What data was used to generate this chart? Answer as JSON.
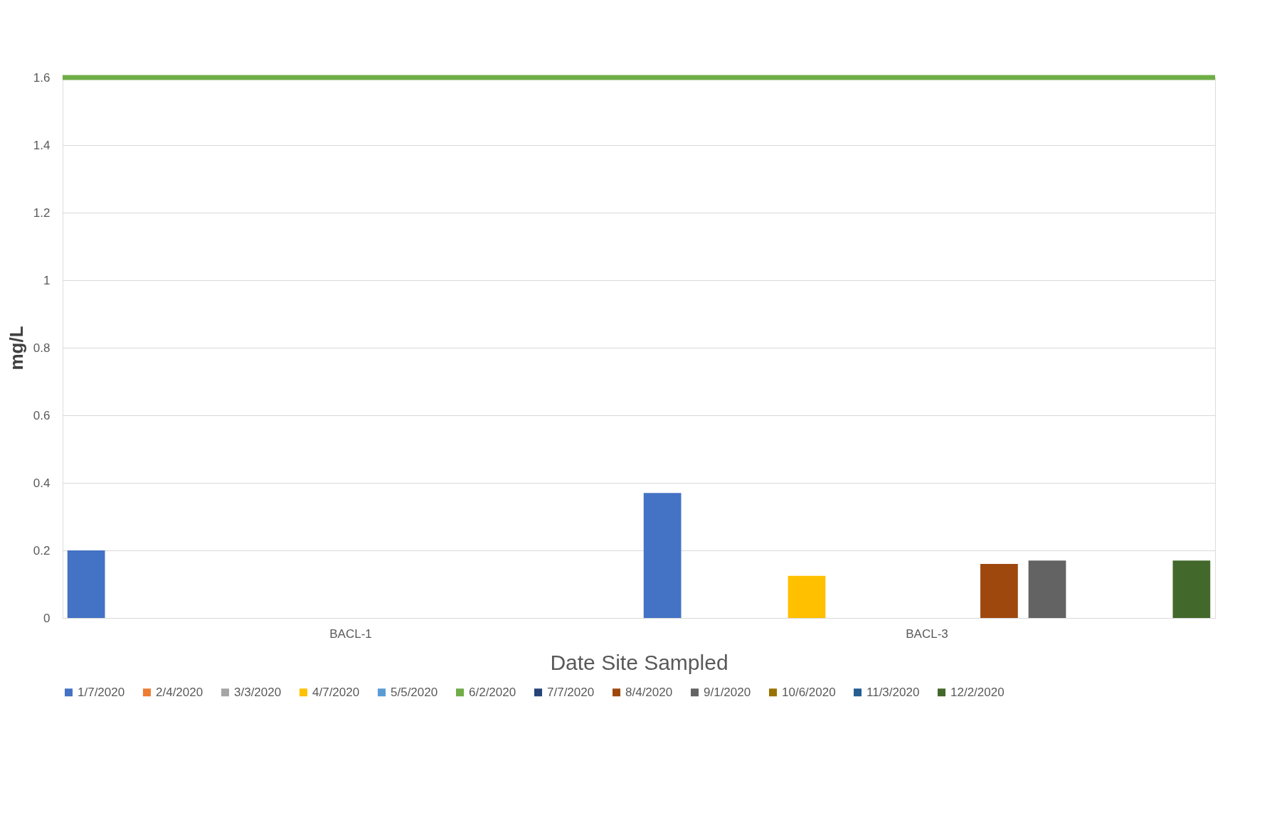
{
  "chart_data": {
    "type": "bar",
    "xlabel": "Date Site Sampled",
    "ylabel": "mg/L",
    "categories": [
      "BACL-1",
      "BACL-3"
    ],
    "series": [
      {
        "name": "1/7/2020",
        "color": "#4472c4",
        "values": [
          0.2,
          0.37
        ]
      },
      {
        "name": "2/4/2020",
        "color": "#ed7d31",
        "values": [
          null,
          null
        ]
      },
      {
        "name": "3/3/2020",
        "color": "#a5a5a5",
        "values": [
          null,
          null
        ]
      },
      {
        "name": "4/7/2020",
        "color": "#ffc000",
        "values": [
          null,
          0.125
        ]
      },
      {
        "name": "5/5/2020",
        "color": "#5b9bd5",
        "values": [
          null,
          null
        ]
      },
      {
        "name": "6/2/2020",
        "color": "#70ad47",
        "values": [
          null,
          null
        ]
      },
      {
        "name": "7/7/2020",
        "color": "#264478",
        "values": [
          null,
          null
        ]
      },
      {
        "name": "8/4/2020",
        "color": "#9e480e",
        "values": [
          null,
          0.16
        ]
      },
      {
        "name": "9/1/2020",
        "color": "#636363",
        "values": [
          null,
          0.17
        ]
      },
      {
        "name": "10/6/2020",
        "color": "#997300",
        "values": [
          null,
          null
        ]
      },
      {
        "name": "11/3/2020",
        "color": "#255e91",
        "values": [
          null,
          null
        ]
      },
      {
        "name": "12/2/2020",
        "color": "#43682b",
        "values": [
          null,
          0.17
        ]
      }
    ],
    "ylim": [
      0,
      1.6
    ],
    "yticks": [
      0,
      0.2,
      0.4,
      0.6,
      0.8,
      1,
      1.2,
      1.4,
      1.6
    ],
    "ref_lines": [
      {
        "axis": "y",
        "value": 1.6,
        "color": "#70ad47"
      }
    ],
    "grid": "y",
    "legend": "bottom"
  }
}
